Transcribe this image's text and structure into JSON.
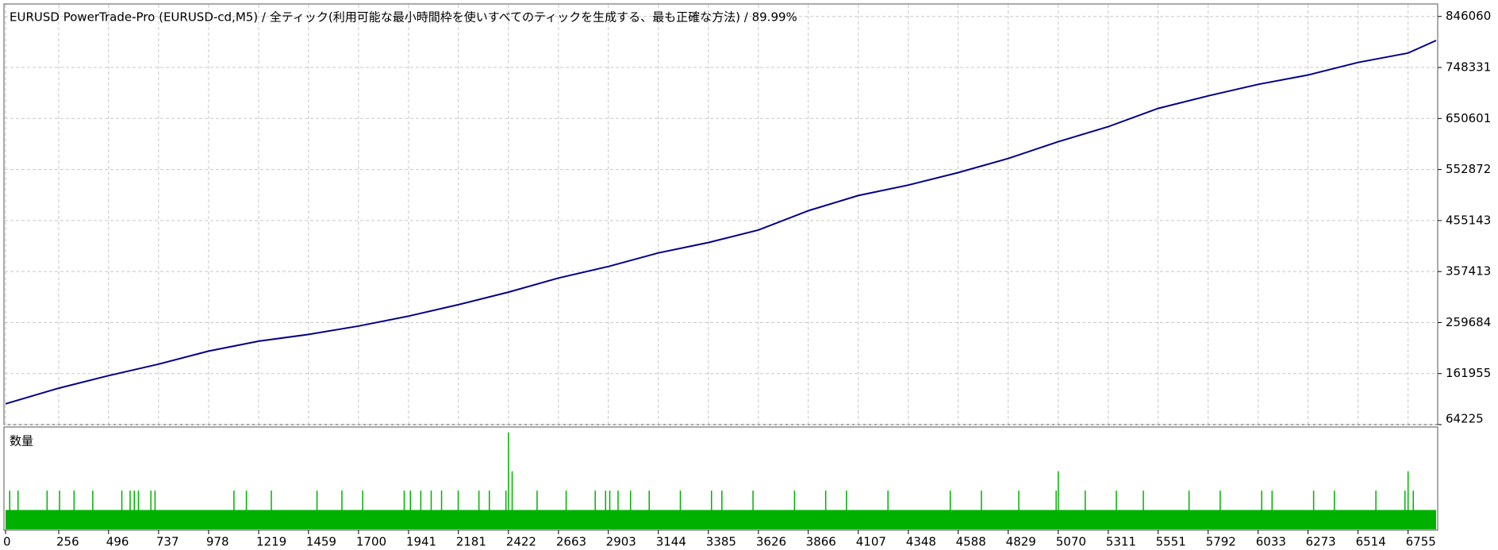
{
  "chart_data": {
    "type": "line",
    "title": "EURUSD PowerTrade-Pro (EURUSD-cd,M5) / 全ティック(利用可能な最小時間枠を使いすべてのティックを生成する、最も正確な方法) / 89.99%",
    "color": "#00008b",
    "x": [
      0,
      256,
      496,
      737,
      978,
      1219,
      1459,
      1700,
      1941,
      2181,
      2422,
      2663,
      2903,
      3144,
      3385,
      3626,
      3866,
      4107,
      4348,
      4588,
      4829,
      5070,
      5311,
      5551,
      5792,
      6033,
      6273,
      6514,
      6755,
      6890
    ],
    "values": [
      104000,
      134000,
      158000,
      180000,
      205000,
      224000,
      237000,
      253000,
      272000,
      294000,
      318000,
      345000,
      367000,
      393000,
      413000,
      437000,
      474000,
      503000,
      523000,
      547000,
      574000,
      606000,
      635000,
      670000,
      694000,
      716000,
      734000,
      758000,
      776000,
      800000
    ],
    "xlim": [
      0,
      6890
    ],
    "ylim": [
      64225,
      870000
    ],
    "xticks": [
      0,
      256,
      496,
      737,
      978,
      1219,
      1459,
      1700,
      1941,
      2181,
      2422,
      2663,
      2903,
      3144,
      3385,
      3626,
      3866,
      4107,
      4348,
      4588,
      4829,
      5070,
      5311,
      5551,
      5792,
      6033,
      6273,
      6514,
      6755
    ],
    "yticks": [
      846060,
      748331,
      650601,
      552872,
      455143,
      357413,
      259684,
      161955,
      64225
    ],
    "grid": true,
    "volume": {
      "label": "数量",
      "color": "#00b000",
      "ylim": [
        0,
        5.2
      ],
      "base": 1,
      "x": [
        20,
        60,
        200,
        260,
        330,
        420,
        560,
        600,
        620,
        640,
        700,
        720,
        1100,
        1160,
        1280,
        1500,
        1620,
        1720,
        1920,
        1950,
        2000,
        2050,
        2100,
        2180,
        2280,
        2330,
        2410,
        2422,
        2440,
        2560,
        2700,
        2840,
        2890,
        2910,
        2950,
        3010,
        3100,
        3250,
        3400,
        3450,
        3600,
        3800,
        3950,
        4050,
        4250,
        4550,
        4700,
        4880,
        5060,
        5070,
        5200,
        5350,
        5480,
        5700,
        5850,
        6050,
        6100,
        6300,
        6400,
        6600,
        6740,
        6755,
        6780
      ],
      "values": [
        2,
        2,
        2,
        2,
        2,
        2,
        2,
        2,
        2,
        2,
        2,
        2,
        2,
        2,
        2,
        2,
        2,
        2,
        2,
        2,
        2,
        2,
        2,
        2,
        2,
        2,
        2,
        5,
        3,
        2,
        2,
        2,
        2,
        2,
        2,
        2,
        2,
        2,
        2,
        2,
        2,
        2,
        2,
        2,
        2,
        2,
        2,
        2,
        2,
        3,
        2,
        2,
        2,
        2,
        2,
        2,
        2,
        2,
        2,
        2,
        2,
        3,
        2
      ]
    }
  }
}
